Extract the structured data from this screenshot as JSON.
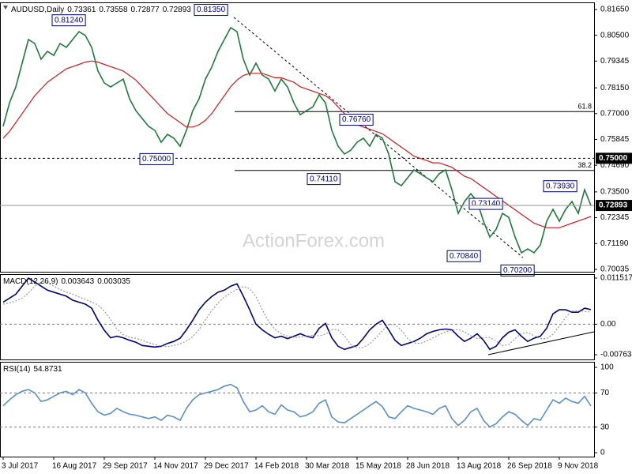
{
  "chart_data": [
    {
      "type": "line",
      "title": "AUDUSD,Daily",
      "last_bar": {
        "open": 0.73361,
        "high": 0.73558,
        "low": 0.72877
      },
      "watermark": "ActionForex.com",
      "ylim": [
        0.6993,
        0.8197
      ],
      "yticks": [
        {
          "value": 0.8165,
          "label": "0.81650"
        },
        {
          "value": 0.805,
          "label": "0.80500"
        },
        0.79345,
        {
          "value": 0.7815,
          "label": "0.78150"
        },
        {
          "value": 0.77,
          "label": "0.77000"
        },
        0.75845,
        {
          "value": 0.7469,
          "label": "0.74690"
        },
        {
          "value": 0.735,
          "label": "0.73500"
        },
        0.72345,
        {
          "value": 0.7119,
          "label": "0.71190"
        },
        0.70035
      ],
      "grid": false,
      "level": {
        "value": 0.75,
        "label": "0.75000"
      },
      "fib_levels": [
        {
          "label": "61.8",
          "value": 0.7709
        },
        {
          "label": "38.2",
          "value": 0.7446
        }
      ],
      "annotations": [
        {
          "value": 0.8124,
          "label": "0.81240"
        },
        {
          "value": 0.8135,
          "label": "0.81350"
        },
        {
          "value": 0.75,
          "label": "0.75000"
        },
        {
          "value": 0.7411,
          "label": "0.74110"
        },
        {
          "value": 0.7676,
          "label": "0.76760"
        },
        {
          "value": 0.7314,
          "label": "0.73140"
        },
        {
          "value": 0.7084,
          "label": "0.70840"
        },
        {
          "value": 0.702,
          "label": "0.70200"
        },
        {
          "value": 0.7393,
          "label": "0.73930"
        }
      ],
      "series": [
        {
          "color": "#1f7a3c",
          "values": [
            0.7643,
            0.7748,
            0.7819,
            0.7925,
            0.8031,
            0.8013,
            0.7943,
            0.7978,
            0.796,
            0.8013,
            0.7996,
            0.8031,
            0.8066,
            0.8049,
            0.7996,
            0.789,
            0.7837,
            0.7819,
            0.7837,
            0.7854,
            0.7766,
            0.7713,
            0.7678,
            0.7643,
            0.7625,
            0.7572,
            0.7607,
            0.759,
            0.7554,
            0.7625,
            0.7713,
            0.7766,
            0.7854,
            0.7907,
            0.7978,
            0.8031,
            0.8084,
            0.8066,
            0.7943,
            0.7872,
            0.7925,
            0.7872,
            0.7854,
            0.7801,
            0.7854,
            0.7819,
            0.7748,
            0.7695,
            0.7713,
            0.773,
            0.7784,
            0.7748,
            0.7625,
            0.7554,
            0.7519,
            0.7536,
            0.7572,
            0.759,
            0.7554,
            0.7607,
            0.759,
            0.7519,
            0.7395,
            0.7378,
            0.7413,
            0.7448,
            0.7431,
            0.7413,
            0.7395,
            0.7431,
            0.7448,
            0.736,
            0.7254,
            0.7307,
            0.7342,
            0.7307,
            0.7219,
            0.7148,
            0.7183,
            0.7254,
            0.7236,
            0.7148,
            0.7078,
            0.7095,
            0.7078,
            0.7113,
            0.7219,
            0.7272,
            0.7219,
            0.7272,
            0.7307,
            0.7254,
            0.736,
            0.72893
          ]
        },
        {
          "color": "#d71920",
          "values": [
            0.759,
            0.762,
            0.766,
            0.77,
            0.774,
            0.778,
            0.781,
            0.784,
            0.786,
            0.788,
            0.79,
            0.791,
            0.792,
            0.793,
            0.7935,
            0.793,
            0.792,
            0.791,
            0.79,
            0.789,
            0.787,
            0.785,
            0.782,
            0.779,
            0.776,
            0.773,
            0.77,
            0.768,
            0.766,
            0.764,
            0.764,
            0.765,
            0.767,
            0.77,
            0.774,
            0.778,
            0.782,
            0.785,
            0.787,
            0.788,
            0.788,
            0.788,
            0.787,
            0.786,
            0.786,
            0.785,
            0.784,
            0.782,
            0.781,
            0.78,
            0.779,
            0.778,
            0.776,
            0.773,
            0.77,
            0.767,
            0.765,
            0.764,
            0.763,
            0.762,
            0.761,
            0.759,
            0.757,
            0.755,
            0.753,
            0.751,
            0.75,
            0.749,
            0.748,
            0.748,
            0.747,
            0.746,
            0.744,
            0.742,
            0.741,
            0.739,
            0.737,
            0.735,
            0.733,
            0.731,
            0.729,
            0.727,
            0.725,
            0.723,
            0.721,
            0.72,
            0.719,
            0.719,
            0.719,
            0.72,
            0.721,
            0.722,
            0.723,
            0.724
          ]
        }
      ]
    },
    {
      "type": "line",
      "title": "MACD(12,26,9)",
      "ylim": [
        -0.0088,
        0.0125
      ],
      "yticks": [
        0.011517,
        {
          "value": 0,
          "label": "0.00"
        },
        -0.007634
      ],
      "grid": false,
      "levels": [
        0
      ],
      "series": [
        {
          "color": "#000080",
          "values": [
            0.0055,
            0.0065,
            0.0075,
            0.0095,
            0.0115,
            0.0105,
            0.0095,
            0.0085,
            0.008,
            0.0075,
            0.007,
            0.006,
            0.0055,
            0.005,
            0.004,
            0.001,
            -0.0015,
            -0.0034,
            -0.003,
            -0.0034,
            -0.004,
            -0.0045,
            -0.0053,
            -0.0055,
            -0.0057,
            -0.0055,
            -0.0048,
            -0.0043,
            -0.0035,
            -0.0014,
            0.001,
            0.0036,
            0.0055,
            0.0069,
            0.008,
            0.0085,
            0.0095,
            0.0101,
            0.007,
            0.0036,
            0,
            -0.0014,
            -0.0025,
            -0.0034,
            -0.003,
            -0.0036,
            -0.003,
            -0.0024,
            -0.003,
            -0.0034,
            -0.001,
            0.0002,
            -0.0034,
            -0.0055,
            -0.0063,
            -0.0058,
            -0.0053,
            -0.0035,
            -0.0014,
            0,
            0.001,
            -0.0014,
            -0.004,
            -0.0053,
            -0.0048,
            -0.0043,
            -0.0035,
            -0.0024,
            -0.0018,
            -0.0014,
            -0.0012,
            -0.0014,
            -0.003,
            -0.0043,
            -0.0035,
            -0.0024,
            -0.004,
            -0.0063,
            -0.0055,
            -0.0034,
            -0.002,
            -0.0014,
            -0.003,
            -0.0043,
            -0.0035,
            -0.003,
            -0.001,
            0.0026,
            0.0036,
            0.0036,
            0.003,
            0.003,
            0.004,
            0.003643
          ]
        },
        {
          "color": "#9a9a9a",
          "dashed": true,
          "values": [
            0.005,
            0.0053,
            0.0058,
            0.0065,
            0.0078,
            0.0095,
            0.0105,
            0.0105,
            0.0095,
            0.0087,
            0.008,
            0.0075,
            0.0068,
            0.0062,
            0.0055,
            0.0048,
            0.0033,
            0.0012,
            -0.0013,
            -0.0026,
            -0.0033,
            -0.0035,
            -0.004,
            -0.0046,
            -0.0051,
            -0.0055,
            -0.0056,
            -0.0053,
            -0.0049,
            -0.0042,
            -0.0031,
            -0.0013,
            0.0011,
            0.0034,
            0.0053,
            0.0068,
            0.0078,
            0.0087,
            0.0094,
            0.0089,
            0.0069,
            0.0036,
            0.0007,
            -0.0013,
            -0.0024,
            -0.003,
            -0.0033,
            -0.0032,
            -0.003,
            -0.0028,
            -0.0029,
            -0.0025,
            -0.0014,
            -0.0014,
            -0.0029,
            -0.0051,
            -0.0059,
            -0.0058,
            -0.0049,
            -0.0034,
            -0.0016,
            -0.0001,
            -0.0001,
            -0.0015,
            -0.0036,
            -0.0047,
            -0.0048,
            -0.0042,
            -0.0034,
            -0.0026,
            -0.0019,
            -0.0015,
            -0.0013,
            -0.0019,
            -0.0029,
            -0.0036,
            -0.0034,
            -0.0033,
            -0.0042,
            -0.0053,
            -0.0051,
            -0.0036,
            -0.0023,
            -0.0021,
            -0.0029,
            -0.0036,
            -0.0036,
            -0.0025,
            -0.0005,
            0.0017,
            0.0033,
            0.0034,
            0.0032,
            0.003035
          ]
        }
      ]
    },
    {
      "type": "line",
      "title": "RSI(14)",
      "ylim": [
        -4.6,
        106.5
      ],
      "yticks": [
        0,
        30,
        70,
        100
      ],
      "grid": false,
      "levels": [
        30,
        70
      ],
      "categories": [
        "3 Jul 2017",
        null,
        null,
        null,
        null,
        null,
        null,
        null,
        "16 Aug 2017",
        null,
        null,
        null,
        null,
        null,
        null,
        null,
        "29 Sep 2017",
        null,
        null,
        null,
        null,
        null,
        null,
        null,
        "14 Nov 2017",
        null,
        null,
        null,
        null,
        null,
        null,
        null,
        "29 Dec 2017",
        null,
        null,
        null,
        null,
        null,
        null,
        null,
        "14 Feb 2018",
        null,
        null,
        null,
        null,
        null,
        null,
        null,
        "30 Mar 2018",
        null,
        null,
        null,
        null,
        null,
        null,
        null,
        "15 May 2018",
        null,
        null,
        null,
        null,
        null,
        null,
        null,
        "28 Jun 2018",
        null,
        null,
        null,
        null,
        null,
        null,
        null,
        "13 Aug 2018",
        null,
        null,
        null,
        null,
        null,
        null,
        null,
        "26 Sep 2018",
        null,
        null,
        null,
        null,
        null,
        null,
        null,
        "9 Nov 2018",
        null,
        null,
        null,
        null,
        null
      ],
      "series": [
        {
          "color": "#5b8fd0",
          "values": [
            55,
            62,
            68,
            72,
            74,
            70,
            60,
            62,
            66,
            70,
            72,
            68,
            74,
            70,
            58,
            48,
            44,
            46,
            52,
            48,
            45,
            44,
            42,
            40,
            42,
            38,
            44,
            42,
            38,
            52,
            62,
            68,
            70,
            72,
            74,
            78,
            80,
            76,
            60,
            48,
            50,
            55,
            48,
            45,
            56,
            50,
            48,
            42,
            44,
            48,
            58,
            62,
            42,
            36,
            35,
            40,
            45,
            50,
            55,
            60,
            54,
            42,
            40,
            48,
            55,
            52,
            50,
            48,
            45,
            52,
            55,
            40,
            32,
            38,
            48,
            52,
            38,
            30,
            34,
            42,
            48,
            45,
            38,
            32,
            40,
            38,
            50,
            62,
            58,
            64,
            60,
            58,
            66,
            54.8731
          ]
        }
      ]
    }
  ]
}
